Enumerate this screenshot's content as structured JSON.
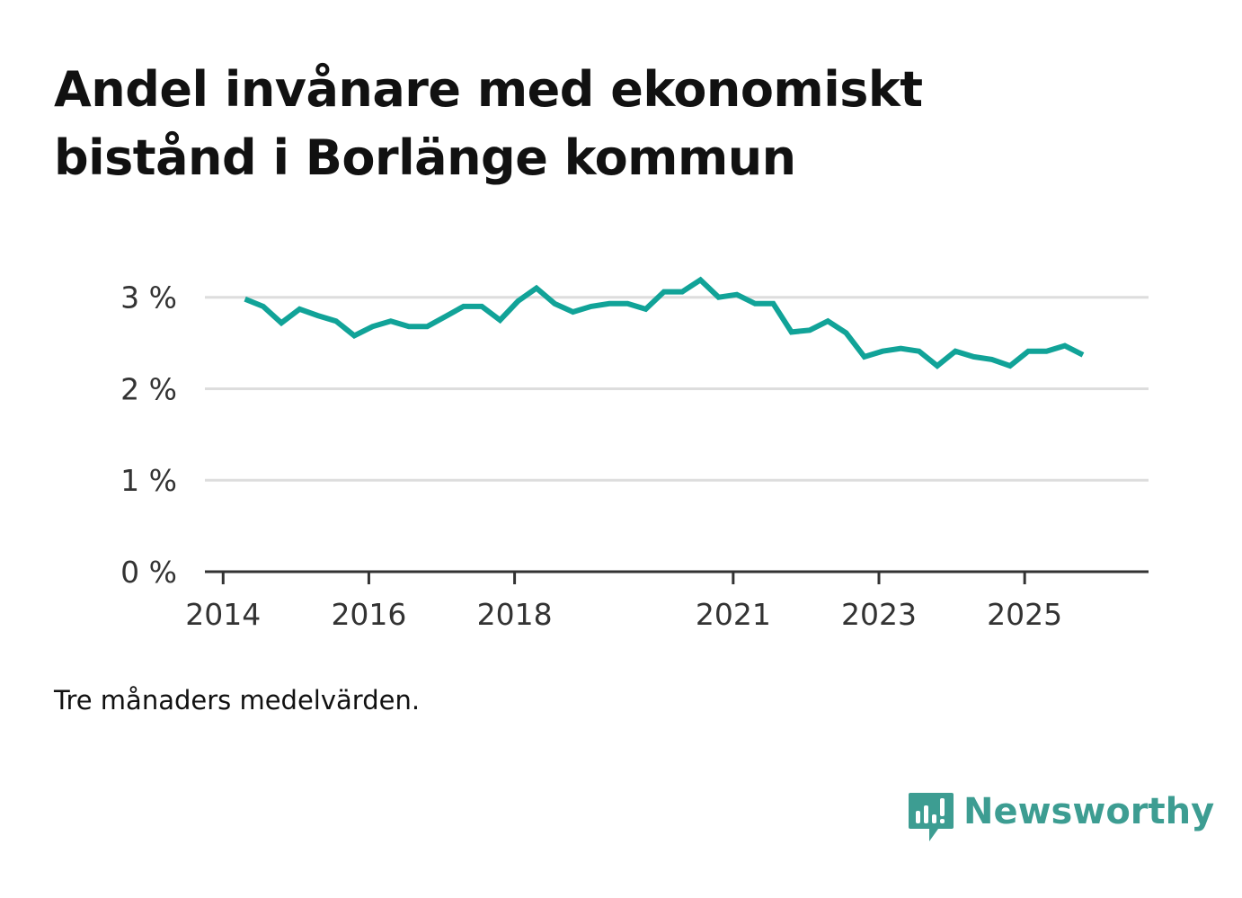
{
  "title": "Andel invånare med ekonomiskt bistånd i Borlänge kommun",
  "footnote": "Tre månaders medelvärden.",
  "brand": {
    "name": "Newsworthy",
    "color": "#3d9d92"
  },
  "colors": {
    "line": "#11a398",
    "grid": "#dddddd",
    "axis": "#333333"
  },
  "chart_data": {
    "type": "line",
    "title": "Andel invånare med ekonomiskt bistånd i Borlänge kommun",
    "xlabel": "",
    "ylabel": "",
    "ylim": [
      0,
      3.4
    ],
    "xlim": [
      2013.75,
      2026.7
    ],
    "grid": true,
    "yticks": [
      {
        "value": 0,
        "label": "0 %"
      },
      {
        "value": 1,
        "label": "1 %"
      },
      {
        "value": 2,
        "label": "2 %"
      },
      {
        "value": 3,
        "label": "3 %"
      }
    ],
    "xticks": [
      {
        "value": 2014,
        "label": "2014"
      },
      {
        "value": 2016,
        "label": "2016"
      },
      {
        "value": 2018,
        "label": "2018"
      },
      {
        "value": 2021,
        "label": "2021"
      },
      {
        "value": 2023,
        "label": "2023"
      },
      {
        "value": 2025,
        "label": "2025"
      }
    ],
    "series": [
      {
        "name": "Andel invånare med ekonomiskt bistånd",
        "x": [
          2014.3,
          2014.55,
          2014.8,
          2015.05,
          2015.3,
          2015.55,
          2015.8,
          2016.05,
          2016.3,
          2016.55,
          2016.8,
          2017.05,
          2017.3,
          2017.55,
          2017.8,
          2018.05,
          2018.3,
          2018.55,
          2018.8,
          2019.05,
          2019.3,
          2019.55,
          2019.8,
          2020.05,
          2020.3,
          2020.55,
          2020.8,
          2021.05,
          2021.3,
          2021.55,
          2021.8,
          2022.05,
          2022.3,
          2022.55,
          2022.8,
          2023.05,
          2023.3,
          2023.55,
          2023.8,
          2024.05,
          2024.3,
          2024.55,
          2024.8,
          2025.05,
          2025.3,
          2025.55,
          2025.8
        ],
        "values": [
          2.98,
          2.9,
          2.72,
          2.87,
          2.8,
          2.74,
          2.58,
          2.68,
          2.74,
          2.68,
          2.68,
          2.79,
          2.9,
          2.9,
          2.75,
          2.96,
          3.1,
          2.93,
          2.84,
          2.9,
          2.93,
          2.93,
          2.87,
          3.06,
          3.06,
          3.19,
          3.0,
          3.03,
          2.93,
          2.93,
          2.62,
          2.64,
          2.74,
          2.61,
          2.35,
          2.41,
          2.44,
          2.41,
          2.25,
          2.41,
          2.35,
          2.32,
          2.25,
          2.41,
          2.41,
          2.47,
          2.37
        ]
      }
    ]
  }
}
